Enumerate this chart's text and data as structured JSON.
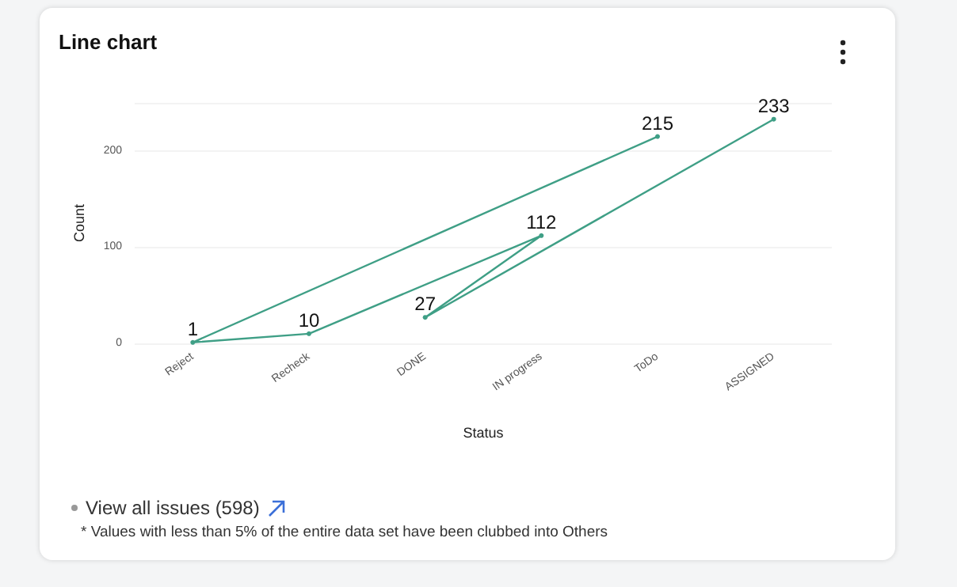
{
  "chart_data": {
    "type": "line",
    "title": "Line chart",
    "xlabel": "Status",
    "ylabel": "Count",
    "categories": [
      "Reject",
      "Recheck",
      "DONE",
      "IN progress",
      "ToDo",
      "ASSIGNED"
    ],
    "series": [
      {
        "color": "#3f9f86",
        "x": [
          "ToDo",
          "Reject",
          "Recheck",
          "IN progress",
          "DONE",
          "ASSIGNED"
        ],
        "values": [
          215,
          1,
          10,
          112,
          27,
          233
        ]
      }
    ],
    "ylim": [
      0,
      250
    ],
    "yticks": [
      0,
      100,
      200,
      {
        "value": 250,
        "label": null
      }
    ],
    "grid": "y",
    "data_labels": true,
    "marker": "circle",
    "line_style": "solid",
    "annotations": [
      "View all issues (598)",
      "* Values with less than 5% of the entire data set have been clubbed into Others"
    ]
  }
}
